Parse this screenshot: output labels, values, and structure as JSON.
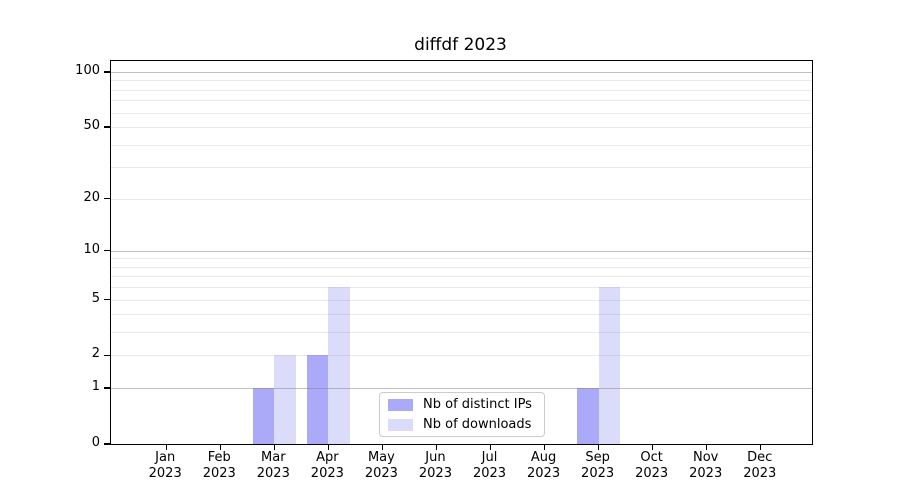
{
  "title": "diffdf 2023",
  "chart_data": {
    "type": "bar",
    "title": "diffdf 2023",
    "categories": [
      "Jan 2023",
      "Feb 2023",
      "Mar 2023",
      "Apr 2023",
      "May 2023",
      "Jun 2023",
      "Jul 2023",
      "Aug 2023",
      "Sep 2023",
      "Oct 2023",
      "Nov 2023",
      "Dec 2023"
    ],
    "series": [
      {
        "name": "Nb of distinct IPs",
        "color": "#aaaaf8",
        "values": [
          0,
          0,
          1,
          2,
          0,
          0,
          0,
          0,
          1,
          0,
          0,
          0
        ]
      },
      {
        "name": "Nb of downloads",
        "color": "#dbdbfa",
        "values": [
          0,
          0,
          2,
          6,
          0,
          0,
          0,
          0,
          6,
          0,
          0,
          0
        ]
      }
    ],
    "yscale": "log1p",
    "yticks": [
      0,
      1,
      2,
      5,
      10,
      20,
      50,
      100
    ],
    "ytick_labels": [
      "0",
      "1",
      "2",
      "5",
      "10",
      "20",
      "50",
      "100"
    ],
    "minor_gridlines": [
      2,
      3,
      4,
      5,
      6,
      7,
      8,
      9,
      20,
      30,
      40,
      50,
      60,
      70,
      80,
      90
    ],
    "major_gridlines": [
      1,
      10,
      100
    ],
    "ylim": [
      0,
      115
    ],
    "grid": true,
    "xlabel": "",
    "ylabel": "",
    "legend_position": "inside-bottom-center"
  }
}
